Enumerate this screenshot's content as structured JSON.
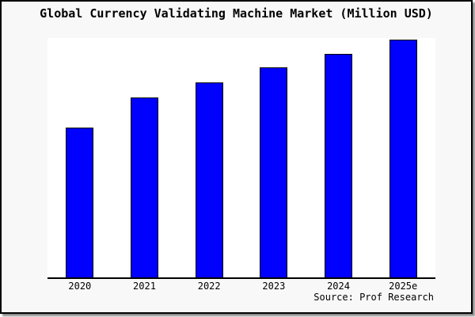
{
  "chart_data": {
    "type": "bar",
    "title": "Global Currency Validating Machine Market (Million USD)",
    "categories": [
      "2020",
      "2021",
      "2022",
      "2023",
      "2024",
      "2025e"
    ],
    "values": [
      189,
      227,
      246,
      265,
      282,
      300
    ],
    "values_note": "y-axis has no tick labels in source image; values are relative units estimated from bar pixel heights",
    "ylim": [
      0,
      302
    ],
    "xlabel": "",
    "ylabel": "",
    "y_axis_visible": false,
    "grid": false,
    "legend": "none",
    "bar_color": "#0000ff",
    "bar_border_color": "#000000",
    "axis_line_color": "#000000",
    "plot_background": "#ffffff",
    "frame_background": "#f8f8f8",
    "source_note": "Source: Prof Research"
  }
}
